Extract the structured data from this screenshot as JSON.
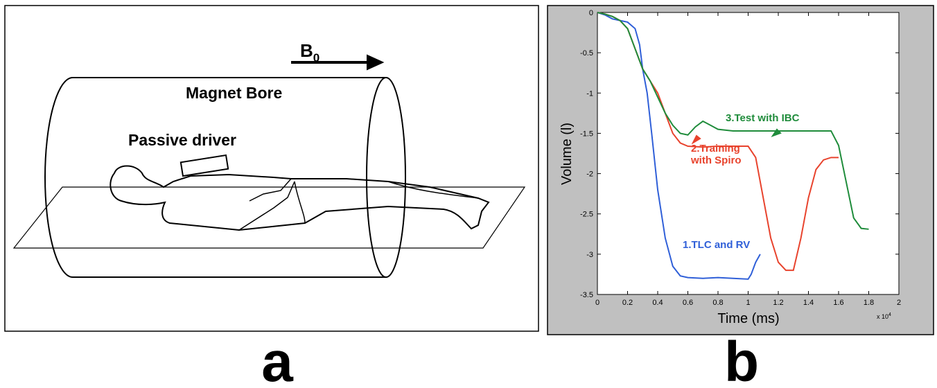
{
  "panel_a": {
    "field_label": {
      "symbol": "B",
      "subscript": "0"
    },
    "bore_label": "Magnet Bore",
    "driver_label": "Passive driver"
  },
  "panel_labels": [
    "a",
    "b"
  ],
  "chart_data": {
    "type": "line",
    "xlabel": "Time (ms)",
    "ylabel": "Volume (l)",
    "x_multiplier": {
      "base": "x 10",
      "exponent": "4"
    },
    "xlim": [
      0,
      2
    ],
    "xticks": [
      0,
      0.2,
      0.4,
      0.6,
      0.8,
      1,
      1.2,
      1.4,
      1.6,
      1.8,
      2
    ],
    "ylim": [
      -3.5,
      0
    ],
    "yticks": [
      0,
      -0.5,
      -1,
      -1.5,
      -2,
      -2.5,
      -3,
      -3.5
    ],
    "series": [
      {
        "name": "1.TLC and RV",
        "color": "#2f5fd8",
        "x": [
          0,
          0.05,
          0.1,
          0.15,
          0.2,
          0.25,
          0.28,
          0.3,
          0.33,
          0.36,
          0.4,
          0.45,
          0.5,
          0.55,
          0.6,
          0.7,
          0.8,
          0.9,
          1.0,
          1.02,
          1.05,
          1.08
        ],
        "values": [
          0,
          -0.03,
          -0.08,
          -0.1,
          -0.12,
          -0.2,
          -0.4,
          -0.7,
          -1.0,
          -1.5,
          -2.2,
          -2.8,
          -3.15,
          -3.27,
          -3.29,
          -3.3,
          -3.29,
          -3.3,
          -3.31,
          -3.25,
          -3.1,
          -3.0
        ]
      },
      {
        "name": "2.Training with Spiro",
        "color": "#e8432d",
        "x": [
          0,
          0.05,
          0.1,
          0.15,
          0.2,
          0.25,
          0.3,
          0.35,
          0.4,
          0.45,
          0.5,
          0.55,
          0.6,
          0.7,
          0.8,
          0.9,
          1.0,
          1.05,
          1.1,
          1.15,
          1.2,
          1.25,
          1.3,
          1.35,
          1.4,
          1.45,
          1.5,
          1.55,
          1.6
        ],
        "values": [
          0,
          -0.02,
          -0.05,
          -0.1,
          -0.2,
          -0.45,
          -0.7,
          -0.85,
          -1.0,
          -1.25,
          -1.5,
          -1.62,
          -1.66,
          -1.67,
          -1.66,
          -1.66,
          -1.66,
          -1.8,
          -2.3,
          -2.8,
          -3.1,
          -3.2,
          -3.2,
          -2.8,
          -2.3,
          -1.95,
          -1.83,
          -1.8,
          -1.8
        ]
      },
      {
        "name": "3.Test with IBC",
        "color": "#1f8c3b",
        "x": [
          0,
          0.05,
          0.1,
          0.15,
          0.2,
          0.25,
          0.3,
          0.35,
          0.4,
          0.45,
          0.5,
          0.55,
          0.6,
          0.65,
          0.7,
          0.75,
          0.8,
          0.9,
          1.0,
          1.2,
          1.4,
          1.55,
          1.6,
          1.65,
          1.7,
          1.75,
          1.8
        ],
        "values": [
          0,
          -0.02,
          -0.05,
          -0.1,
          -0.2,
          -0.45,
          -0.7,
          -0.85,
          -1.05,
          -1.25,
          -1.4,
          -1.5,
          -1.52,
          -1.42,
          -1.35,
          -1.4,
          -1.45,
          -1.47,
          -1.47,
          -1.47,
          -1.47,
          -1.47,
          -1.65,
          -2.1,
          -2.55,
          -2.68,
          -2.69
        ]
      }
    ]
  }
}
